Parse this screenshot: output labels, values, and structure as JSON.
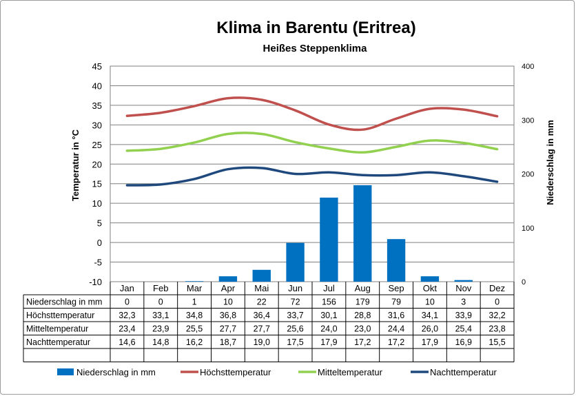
{
  "chart_data": {
    "type": "bar",
    "title": "Klima in Barentu (Eritrea)",
    "subtitle": "Heißes Steppenklima",
    "ylabel": "Temperatur in °C",
    "y2label": "Niederschlag in mm",
    "ylim": [
      -10,
      45
    ],
    "y_ticks": [
      "45",
      "40",
      "35",
      "30",
      "25",
      "20",
      "15",
      "10",
      "5",
      "0",
      "-5",
      "-10"
    ],
    "y2lim": [
      0,
      400
    ],
    "y2_ticks": [
      "400",
      "300",
      "200",
      "100",
      "0"
    ],
    "grid": true,
    "legend_position": "bottom",
    "categories": [
      "Jan",
      "Feb",
      "Mar",
      "Apr",
      "Mai",
      "Jun",
      "Jul",
      "Aug",
      "Sep",
      "Okt",
      "Nov",
      "Dez"
    ],
    "series": [
      {
        "name": "Niederschlag in mm",
        "type": "bar",
        "axis": "right",
        "color": "#0070c0",
        "values": [
          0,
          0,
          1,
          10,
          22,
          72,
          156,
          179,
          79,
          10,
          3,
          0
        ],
        "labels": [
          "0",
          "0",
          "1",
          "10",
          "22",
          "72",
          "156",
          "179",
          "79",
          "10",
          "3",
          "0"
        ]
      },
      {
        "name": "Höchsttemperatur",
        "type": "line",
        "axis": "left",
        "color": "#c0504d",
        "values": [
          32.3,
          33.1,
          34.8,
          36.8,
          36.4,
          33.7,
          30.1,
          28.8,
          31.6,
          34.1,
          33.9,
          32.2
        ],
        "labels": [
          "32,3",
          "33,1",
          "34,8",
          "36,8",
          "36,4",
          "33,7",
          "30,1",
          "28,8",
          "31,6",
          "34,1",
          "33,9",
          "32,2"
        ]
      },
      {
        "name": "Mitteltemperatur",
        "type": "line",
        "axis": "left",
        "color": "#92d050",
        "values": [
          23.4,
          23.9,
          25.5,
          27.7,
          27.7,
          25.6,
          24.0,
          23.0,
          24.4,
          26.0,
          25.4,
          23.8
        ],
        "labels": [
          "23,4",
          "23,9",
          "25,5",
          "27,7",
          "27,7",
          "25,6",
          "24,0",
          "23,0",
          "24,4",
          "26,0",
          "25,4",
          "23,8"
        ]
      },
      {
        "name": "Nachttemperatur",
        "type": "line",
        "axis": "left",
        "color": "#1f497d",
        "values": [
          14.6,
          14.8,
          16.2,
          18.7,
          19.0,
          17.5,
          17.9,
          17.2,
          17.2,
          17.9,
          16.9,
          15.5
        ],
        "labels": [
          "14,6",
          "14,8",
          "16,2",
          "18,7",
          "19,0",
          "17,5",
          "17,9",
          "17,2",
          "17,2",
          "17,9",
          "16,9",
          "15,5"
        ]
      }
    ]
  }
}
